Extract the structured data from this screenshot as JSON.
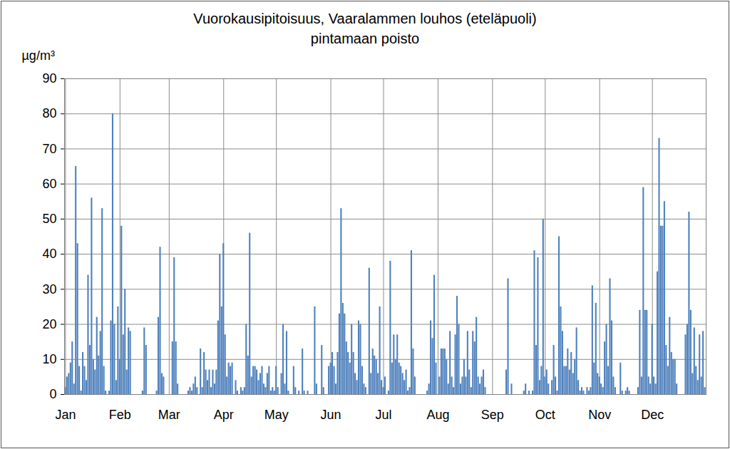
{
  "chart_data": {
    "type": "bar",
    "title": "Vuorokausipitoisuus, Vaaralammen louhos (eteläpuoli)",
    "subtitle": "pintamaan poisto",
    "y_label": "µg/m³",
    "color": "#4f81bd",
    "grid": true,
    "ylim": [
      0,
      90
    ],
    "yticks": [
      0,
      10,
      20,
      30,
      40,
      50,
      60,
      70,
      80,
      90
    ],
    "categories": [
      "Jan",
      null,
      null,
      null,
      null,
      null,
      null,
      null,
      null,
      null,
      null,
      null,
      null,
      null,
      null,
      null,
      null,
      null,
      null,
      null,
      null,
      null,
      null,
      null,
      null,
      null,
      null,
      null,
      null,
      null,
      null,
      "Feb",
      null,
      null,
      null,
      null,
      null,
      null,
      null,
      null,
      null,
      null,
      null,
      null,
      null,
      null,
      null,
      null,
      null,
      null,
      null,
      null,
      null,
      null,
      null,
      null,
      null,
      null,
      null,
      "Mar",
      null,
      null,
      null,
      null,
      null,
      null,
      null,
      null,
      null,
      null,
      null,
      null,
      null,
      null,
      null,
      null,
      null,
      null,
      null,
      null,
      null,
      null,
      null,
      null,
      null,
      null,
      null,
      null,
      null,
      null,
      "Apr",
      null,
      null,
      null,
      null,
      null,
      null,
      null,
      null,
      null,
      null,
      null,
      null,
      null,
      null,
      null,
      null,
      null,
      null,
      null,
      null,
      null,
      null,
      null,
      null,
      null,
      null,
      null,
      null,
      null,
      "May",
      null,
      null,
      null,
      null,
      null,
      null,
      null,
      null,
      null,
      null,
      null,
      null,
      null,
      null,
      null,
      null,
      null,
      null,
      null,
      null,
      null,
      null,
      null,
      null,
      null,
      null,
      null,
      null,
      null,
      null,
      "Jun",
      null,
      null,
      null,
      null,
      null,
      null,
      null,
      null,
      null,
      null,
      null,
      null,
      null,
      null,
      null,
      null,
      null,
      null,
      null,
      null,
      null,
      null,
      null,
      null,
      null,
      null,
      null,
      null,
      null,
      "Jul",
      null,
      null,
      null,
      null,
      null,
      null,
      null,
      null,
      null,
      null,
      null,
      null,
      null,
      null,
      null,
      null,
      null,
      null,
      null,
      null,
      null,
      null,
      null,
      null,
      null,
      null,
      null,
      null,
      null,
      null,
      "Aug",
      null,
      null,
      null,
      null,
      null,
      null,
      null,
      null,
      null,
      null,
      null,
      null,
      null,
      null,
      null,
      null,
      null,
      null,
      null,
      null,
      null,
      null,
      null,
      null,
      null,
      null,
      null,
      null,
      null,
      null,
      "Sep",
      null,
      null,
      null,
      null,
      null,
      null,
      null,
      null,
      null,
      null,
      null,
      null,
      null,
      null,
      null,
      null,
      null,
      null,
      null,
      null,
      null,
      null,
      null,
      null,
      null,
      null,
      null,
      null,
      null,
      "Oct",
      null,
      null,
      null,
      null,
      null,
      null,
      null,
      null,
      null,
      null,
      null,
      null,
      null,
      null,
      null,
      null,
      null,
      null,
      null,
      null,
      null,
      null,
      null,
      null,
      null,
      null,
      null,
      null,
      null,
      null,
      "Nov",
      null,
      null,
      null,
      null,
      null,
      null,
      null,
      null,
      null,
      null,
      null,
      null,
      null,
      null,
      null,
      null,
      null,
      null,
      null,
      null,
      null,
      null,
      null,
      null,
      null,
      null,
      null,
      null,
      null,
      "Dec",
      null,
      null,
      null,
      null,
      null,
      null,
      null,
      null,
      null,
      null,
      null,
      null,
      null,
      null,
      null,
      null,
      null,
      null,
      null,
      null,
      null,
      null,
      null,
      null,
      null,
      null,
      null,
      null,
      null,
      null
    ],
    "values": [
      2,
      5,
      6,
      9,
      15,
      3,
      65,
      43,
      8,
      1,
      12,
      8,
      4,
      34,
      14,
      56,
      10,
      7,
      22,
      11,
      18,
      53,
      8,
      1,
      0,
      1,
      21,
      80,
      20,
      4,
      25,
      10,
      48,
      17,
      30,
      7,
      19,
      18,
      0,
      0,
      0,
      0,
      0,
      0,
      1,
      19,
      14,
      0,
      0,
      0,
      0,
      0,
      1,
      22,
      42,
      6,
      5,
      0,
      0,
      0,
      0,
      15,
      39,
      15,
      3,
      0,
      0,
      0,
      0,
      0,
      1,
      2,
      1,
      3,
      5,
      2,
      0,
      13,
      2,
      12,
      7,
      4,
      7,
      2,
      7,
      3,
      7,
      21,
      40,
      25,
      43,
      17,
      5,
      9,
      8,
      9,
      0,
      4,
      1,
      0,
      2,
      1,
      2,
      20,
      11,
      46,
      5,
      8,
      8,
      7,
      4,
      6,
      8,
      3,
      2,
      6,
      8,
      1,
      2,
      1,
      8,
      2,
      0,
      6,
      20,
      3,
      18,
      1,
      0,
      0,
      8,
      2,
      0,
      1,
      0,
      13,
      1,
      0,
      1,
      0,
      0,
      0,
      25,
      3,
      0,
      0,
      14,
      2,
      0,
      0,
      8,
      9,
      12,
      8,
      3,
      12,
      23,
      53,
      26,
      23,
      15,
      12,
      9,
      20,
      12,
      6,
      4,
      21,
      20,
      8,
      3,
      2,
      0,
      36,
      6,
      13,
      11,
      10,
      6,
      25,
      4,
      2,
      5,
      0,
      1,
      38,
      9,
      17,
      10,
      17,
      9,
      8,
      6,
      4,
      7,
      1,
      2,
      41,
      13,
      5,
      0,
      0,
      0,
      0,
      0,
      0,
      1,
      3,
      21,
      16,
      34,
      9,
      0,
      5,
      13,
      13,
      13,
      10,
      3,
      18,
      5,
      2,
      17,
      28,
      20,
      3,
      5,
      10,
      5,
      18,
      7,
      2,
      18,
      15,
      22,
      5,
      3,
      5,
      7,
      2,
      0,
      0,
      0,
      0,
      0,
      0,
      0,
      0,
      0,
      0,
      0,
      7,
      33,
      0,
      3,
      0,
      0,
      0,
      0,
      0,
      0,
      1,
      3,
      0,
      1,
      0,
      1,
      41,
      14,
      39,
      4,
      8,
      50,
      5,
      7,
      3,
      0,
      4,
      14,
      5,
      1,
      45,
      25,
      18,
      8,
      8,
      13,
      7,
      12,
      6,
      10,
      19,
      4,
      1,
      2,
      1,
      0,
      2,
      1,
      2,
      31,
      9,
      26,
      6,
      5,
      3,
      2,
      15,
      20,
      8,
      33,
      21,
      5,
      2,
      0,
      0,
      9,
      1,
      0,
      1,
      2,
      1,
      0,
      0,
      0,
      0,
      2,
      24,
      5,
      59,
      24,
      24,
      5,
      3,
      20,
      5,
      3,
      35,
      73,
      48,
      48,
      55,
      14,
      8,
      22,
      12,
      10,
      10,
      3,
      0,
      0,
      0,
      0,
      17,
      20,
      52,
      24,
      6,
      19,
      8,
      4,
      17,
      5,
      18,
      2
    ]
  }
}
